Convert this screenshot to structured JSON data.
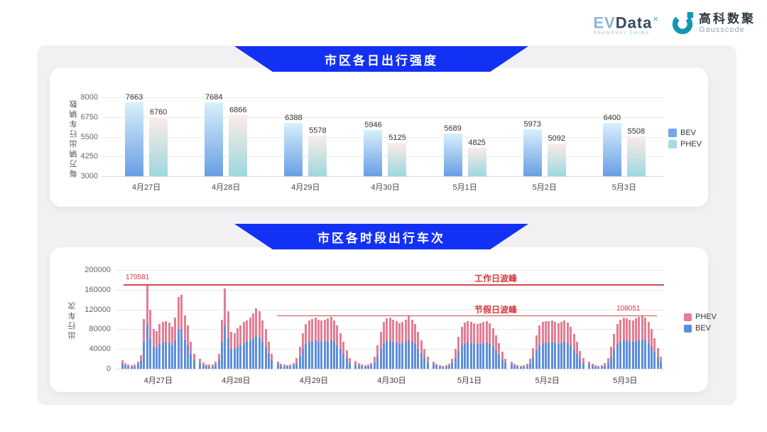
{
  "header": {
    "evdata": {
      "part1": "EV",
      "part2": "Data",
      "sup": "×",
      "subtitle_left": "SHANGHAI ",
      "subtitle_right": "CHINA"
    },
    "gausscode": {
      "name_cn": "高科数聚",
      "name_en": "Gausscode",
      "mark_color": "#1496B4"
    }
  },
  "colors": {
    "banner_blue": "#1330F5",
    "bev_blue": "#5C8EDC",
    "phev_pink": "#E37E93",
    "annotation_red": "#D9363C"
  },
  "chart_data": [
    {
      "type": "bar",
      "title": "市区各日出行强度",
      "ylabel": "每万辆出行车辆数",
      "ylim": [
        3000,
        8000
      ],
      "yticks": [
        8000,
        6750,
        5500,
        4250,
        3000
      ],
      "categories": [
        "4月27日",
        "4月28日",
        "4月29日",
        "4月30日",
        "5月1日",
        "5月2日",
        "5月3日"
      ],
      "series": [
        {
          "name": "BEV",
          "values": [
            7663,
            7684,
            6388,
            5946,
            5689,
            5973,
            6400
          ],
          "gradient": [
            "#D8F0FB",
            "#699EE4"
          ],
          "legend_color": "#74A7E8"
        },
        {
          "name": "PHEV",
          "values": [
            6760,
            6866,
            5578,
            5125,
            4825,
            5092,
            5508
          ],
          "gradient": [
            "#FAECE8",
            "#9ED7DE"
          ],
          "legend_color": "#A6DDE3"
        }
      ],
      "legend": [
        "BEV",
        "PHEV"
      ],
      "legend_position": "right",
      "grid": true
    },
    {
      "type": "bar",
      "stacked": true,
      "title": "市区各时段出行车次",
      "ylabel": "出行车次",
      "ylim": [
        0,
        200000
      ],
      "yticks": [
        200000,
        160000,
        120000,
        80000,
        40000,
        0
      ],
      "categories": [
        "4月27日",
        "4月28日",
        "4月29日",
        "4月30日",
        "5月1日",
        "5月2日",
        "5月3日"
      ],
      "hours_per_day": 24,
      "stack_order": [
        "BEV",
        "PHEV"
      ],
      "legend": [
        "PHEV",
        "BEV"
      ],
      "legend_position": "right",
      "grid": true,
      "series": [
        {
          "name": "BEV",
          "color": "#5C8EDC",
          "values_by_day": [
            [
              10000,
              7000,
              5000,
              4000,
              5000,
              8000,
              16000,
              55000,
              91000,
              62000,
              44000,
              42000,
              50000,
              53000,
              54000,
              52000,
              47000,
              57000,
              79000,
              81000,
              59000,
              48000,
              30000,
              17000
            ],
            [
              11000,
              7000,
              5000,
              4000,
              5000,
              8000,
              17000,
              55000,
              88000,
              62000,
              41000,
              40000,
              45000,
              48000,
              52000,
              54000,
              57000,
              62000,
              67000,
              64000,
              54000,
              44000,
              30000,
              17000
            ],
            [
              8000,
              6000,
              4000,
              4000,
              4000,
              7000,
              12000,
              25000,
              40000,
              50000,
              54000,
              56000,
              57000,
              55000,
              54000,
              55000,
              56000,
              58000,
              54000,
              48000,
              40000,
              30000,
              21000,
              12000
            ],
            [
              9000,
              6000,
              4000,
              4000,
              4000,
              7000,
              13000,
              26000,
              41000,
              52000,
              56000,
              57000,
              55000,
              53000,
              51000,
              52000,
              55000,
              58000,
              55000,
              50000,
              41000,
              32000,
              22000,
              13000
            ],
            [
              8000,
              6000,
              4000,
              3000,
              4000,
              6000,
              11000,
              22000,
              36000,
              47000,
              51000,
              53000,
              52000,
              51000,
              50000,
              51000,
              52000,
              53000,
              51000,
              45000,
              37000,
              29000,
              19000,
              11000
            ],
            [
              8000,
              6000,
              4000,
              3000,
              4000,
              6000,
              11000,
              23000,
              37000,
              48000,
              52000,
              53000,
              53000,
              54000,
              52000,
              51000,
              52000,
              54000,
              52000,
              47000,
              39000,
              30000,
              20000,
              12000
            ],
            [
              8000,
              6000,
              4000,
              3000,
              4000,
              6000,
              12000,
              24000,
              39000,
              50000,
              55000,
              57000,
              56000,
              55000,
              54000,
              56000,
              58000,
              59000,
              57000,
              52000,
              44000,
              34000,
              23000,
              14000
            ]
          ]
        },
        {
          "name": "PHEV",
          "color": "#E37E93",
          "values_by_day": [
            [
              8000,
              5000,
              3000,
              3000,
              3000,
              6000,
              12000,
              46000,
              79581,
              57000,
              36000,
              34000,
              40000,
              42000,
              42000,
              41000,
              38000,
              47000,
              66000,
              68000,
              49000,
              40000,
              25000,
              13000
            ],
            [
              9000,
              6000,
              4000,
              4000,
              4000,
              7000,
              13000,
              45000,
              75000,
              55000,
              34000,
              32000,
              37000,
              40000,
              43000,
              44000,
              46000,
              50000,
              55000,
              52000,
              44000,
              36000,
              25000,
              13000
            ],
            [
              7000,
              4000,
              4000,
              3000,
              4000,
              5000,
              10000,
              20000,
              32000,
              40000,
              44000,
              45000,
              46000,
              45000,
              44000,
              45000,
              46000,
              47000,
              44000,
              40000,
              32000,
              25000,
              17000,
              10000
            ],
            [
              7000,
              5000,
              4000,
              3000,
              4000,
              5000,
              11000,
              22000,
              34000,
              43000,
              46000,
              47000,
              45000,
              43000,
              41000,
              43000,
              45000,
              48000,
              45000,
              40000,
              34000,
              26000,
              18000,
              11000
            ],
            [
              6000,
              4000,
              3000,
              3000,
              3000,
              4000,
              9000,
              18000,
              29000,
              38000,
              42000,
              43000,
              43000,
              41000,
              40000,
              41000,
              43000,
              44000,
              41000,
              37000,
              31000,
              23000,
              16000,
              9000
            ],
            [
              6000,
              4000,
              3000,
              3000,
              3000,
              4000,
              9000,
              19000,
              31000,
              40000,
              43000,
              44000,
              43000,
              44000,
              43000,
              41000,
              43000,
              44000,
              42000,
              38000,
              31000,
              24000,
              16000,
              9000
            ],
            [
              7000,
              4000,
              3000,
              3000,
              3000,
              5000,
              10000,
              20000,
              31000,
              40000,
              45000,
              47000,
              46000,
              45000,
              44000,
              46000,
              47000,
              49051,
              47000,
              43000,
              36000,
              28000,
              19000,
              11000
            ]
          ]
        }
      ],
      "reference_lines": [
        {
          "label": "工作日波峰",
          "value": 170581
        },
        {
          "label": "节假日波峰",
          "value": 108051
        }
      ],
      "annotations": [
        {
          "text": "170581",
          "value": 170581,
          "day": 0,
          "hour": 8
        },
        {
          "text": "108051",
          "value": 108051,
          "day": 6,
          "hour": 17
        }
      ]
    }
  ]
}
